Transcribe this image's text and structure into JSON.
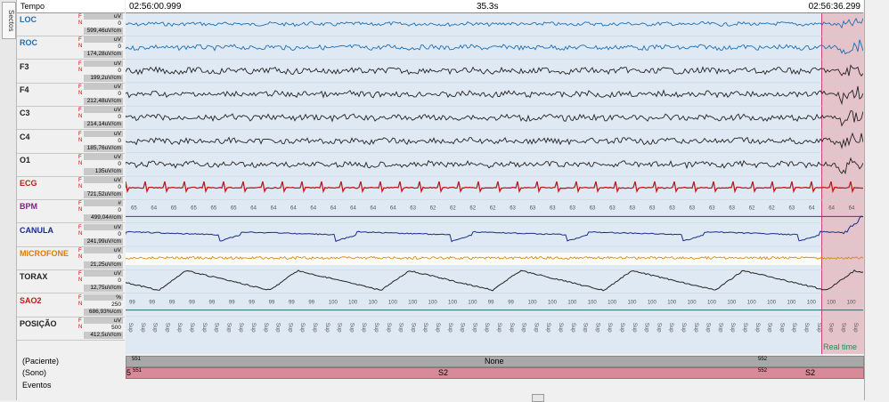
{
  "side_tab": "Sectos",
  "header": {
    "tempo_label": "Tempo",
    "time_start": "02:56:00.999",
    "duration": "35.3s",
    "time_end": "02:56:36.299"
  },
  "channels": [
    {
      "name": "LOC",
      "color": "#1a6fb5",
      "unit": "uV",
      "zero": "0",
      "scale": "599,46uV/cm"
    },
    {
      "name": "ROC",
      "color": "#1a6fb5",
      "unit": "uV",
      "zero": "0",
      "scale": "174,28uV/cm"
    },
    {
      "name": "F3",
      "color": "#222222",
      "unit": "uV",
      "zero": "0",
      "scale": "199,2uV/cm"
    },
    {
      "name": "F4",
      "color": "#222222",
      "unit": "uV",
      "zero": "0",
      "scale": "212,48uV/cm"
    },
    {
      "name": "C3",
      "color": "#222222",
      "unit": "uV",
      "zero": "0",
      "scale": "214,14uV/cm"
    },
    {
      "name": "C4",
      "color": "#222222",
      "unit": "uV",
      "zero": "0",
      "scale": "185,76uV/cm"
    },
    {
      "name": "O1",
      "color": "#222222",
      "unit": "uV",
      "zero": "0",
      "scale": "135uV/cm"
    },
    {
      "name": "ECG",
      "color": "#c01818",
      "unit": "uV",
      "zero": "0",
      "scale": "721,52uV/cm"
    },
    {
      "name": "BPM",
      "color": "#8a1a8a",
      "unit": "#",
      "zero": "0",
      "scale": "499,04#/cm"
    },
    {
      "name": "CANULA",
      "color": "#1a2a8a",
      "unit": "uV",
      "zero": "0",
      "scale": "241,99uV/cm"
    },
    {
      "name": "MICROFONE",
      "color": "#e07a00",
      "unit": "uV",
      "zero": "0",
      "scale": "21,25uV/cm"
    },
    {
      "name": "TORAX",
      "color": "#222222",
      "unit": "uV",
      "zero": "0",
      "scale": "12,75uV/cm"
    },
    {
      "name": "SAO2",
      "color": "#c01818",
      "unit": "%",
      "zero": "250",
      "scale": "686,93%/cm"
    },
    {
      "name": "POSIÇÃO",
      "color": "#222222",
      "unit": "uV",
      "zero": "500",
      "scale": "412,5uV/cm"
    }
  ],
  "fn_flags": {
    "f": "F",
    "n": "N"
  },
  "bpm_values": [
    "65",
    "64",
    "65",
    "65",
    "65",
    "65",
    "64",
    "64",
    "64",
    "64",
    "64",
    "64",
    "64",
    "64",
    "63",
    "62",
    "62",
    "62",
    "62",
    "63",
    "63",
    "63",
    "63",
    "63",
    "63",
    "63",
    "63",
    "63",
    "63",
    "63",
    "63",
    "62",
    "62",
    "63",
    "64",
    "64",
    "64"
  ],
  "sao2_values": [
    "99",
    "99",
    "99",
    "99",
    "99",
    "99",
    "99",
    "99",
    "99",
    "99",
    "100",
    "100",
    "100",
    "100",
    "100",
    "100",
    "100",
    "100",
    "99",
    "99",
    "100",
    "100",
    "100",
    "100",
    "100",
    "100",
    "100",
    "100",
    "100",
    "100",
    "100",
    "100",
    "100",
    "100",
    "100",
    "100",
    "100"
  ],
  "position_value": "Sup",
  "realtime_label": "Real time",
  "bottom": {
    "paciente_label": "(Paciente)",
    "sono_label": "(Sono)",
    "eventos_label": "Eventos",
    "paciente_code_left": "551",
    "paciente_value": "None",
    "paciente_code_right": "552",
    "sono_stage_marker": "5",
    "sono_code_left": "551",
    "sono_value_left": "S2",
    "sono_code_right": "552",
    "sono_value_right": "S2"
  }
}
